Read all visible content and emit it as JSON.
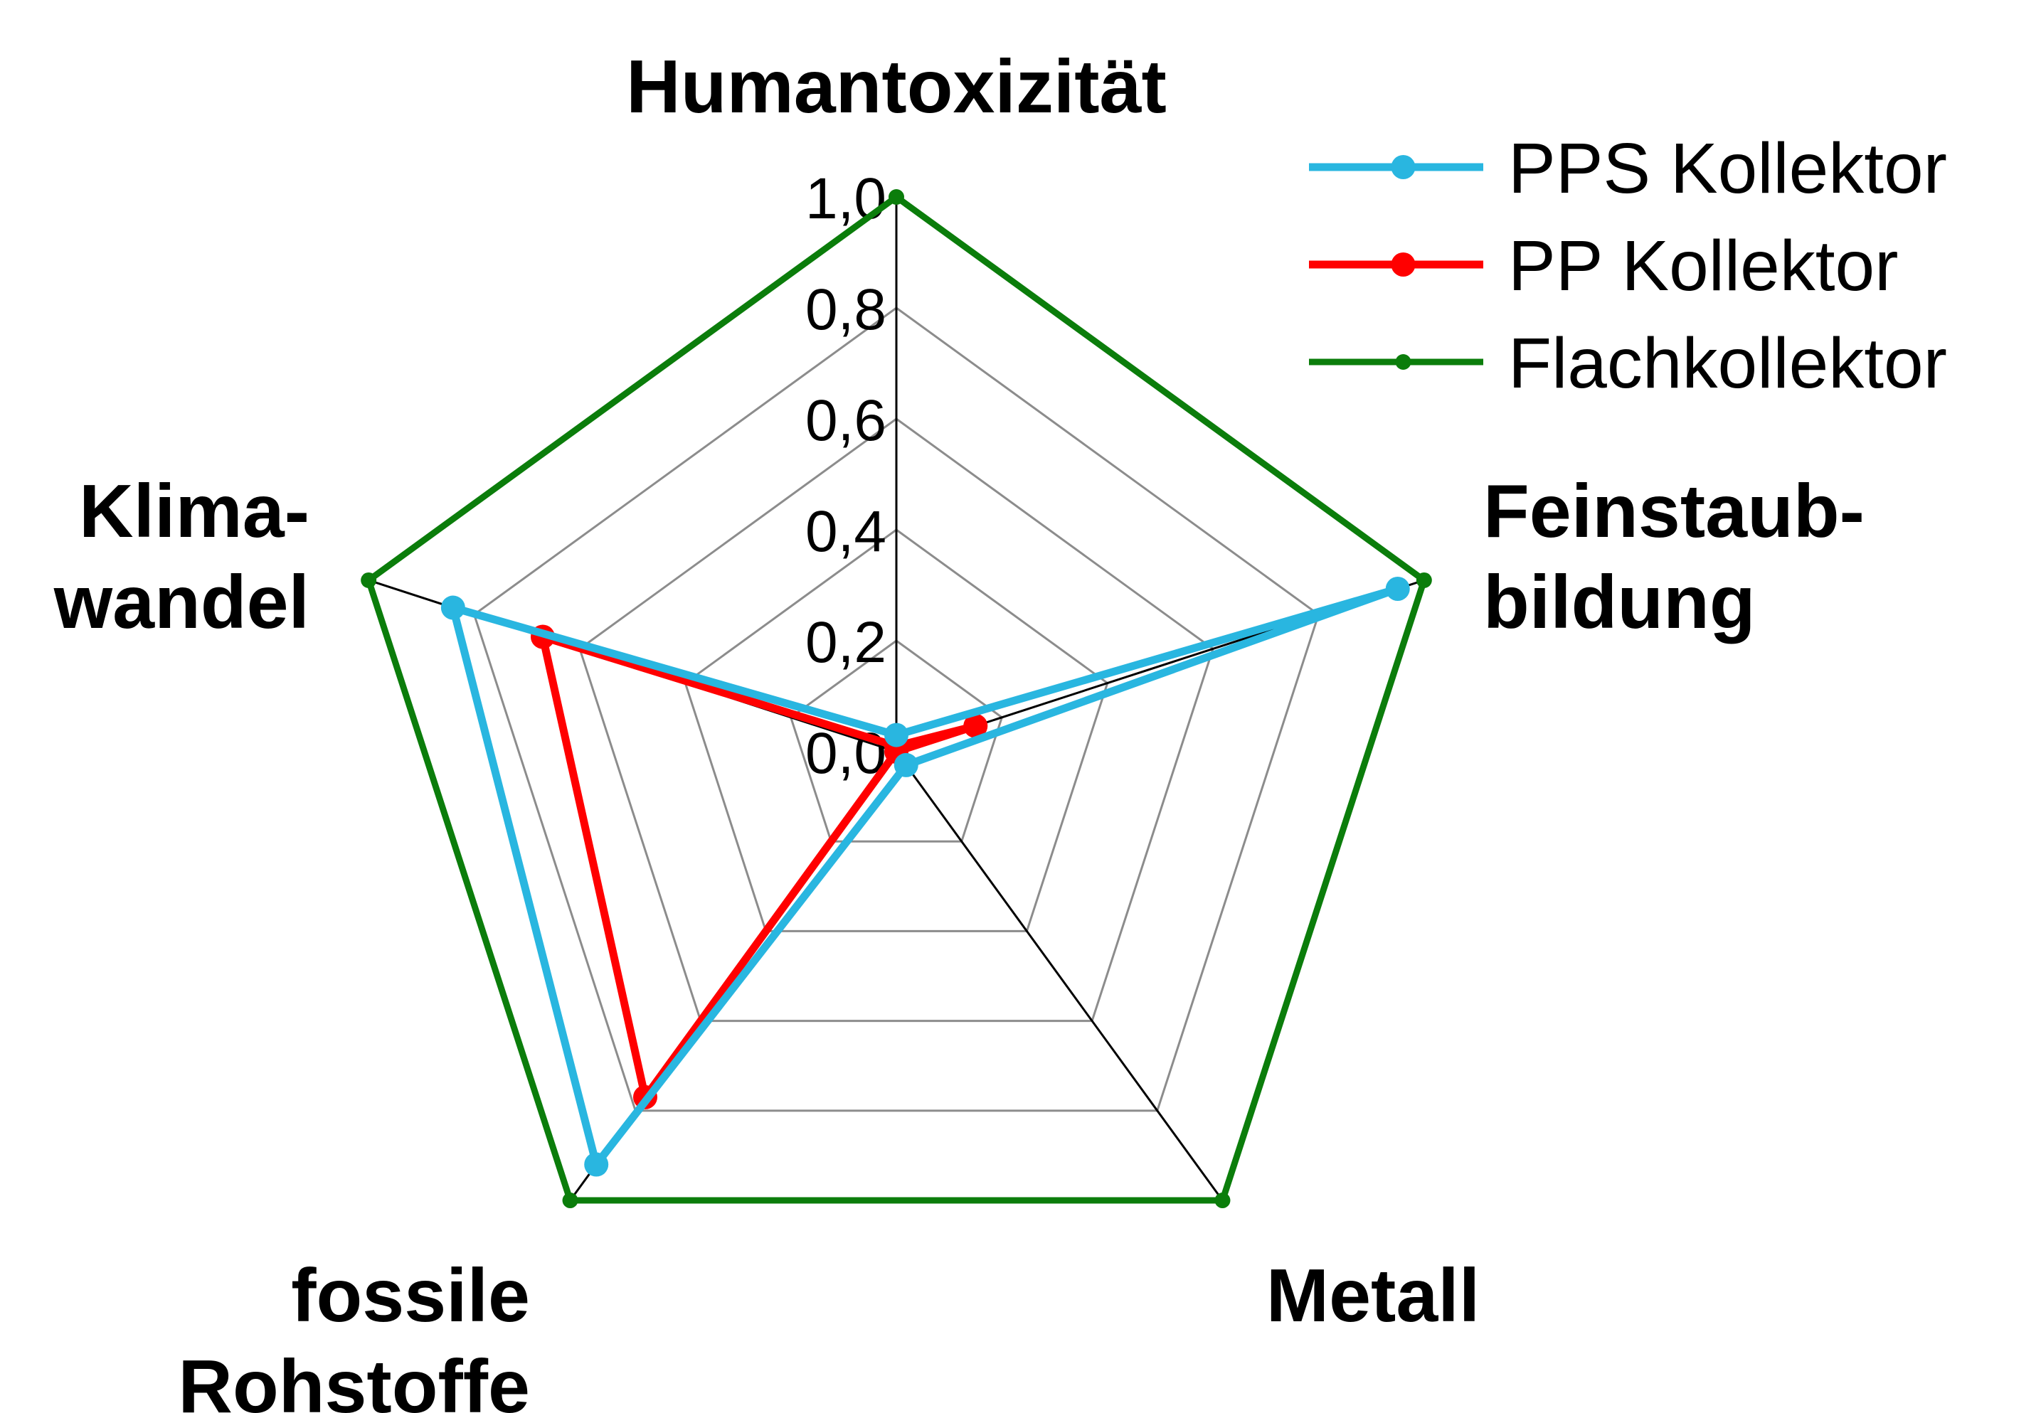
{
  "chart_data": {
    "type": "radar",
    "axes": [
      {
        "lines": [
          "Humantoxizität"
        ]
      },
      {
        "lines": [
          "Feinstaub-",
          "bildung"
        ]
      },
      {
        "lines": [
          "Metall"
        ]
      },
      {
        "lines": [
          "fossile",
          "Rohstoffe"
        ]
      },
      {
        "lines": [
          "Klima-",
          "wandel"
        ]
      }
    ],
    "ticks": [
      "0,0",
      "0,2",
      "0,4",
      "0,6",
      "0,8",
      "1,0"
    ],
    "tick_values": [
      0,
      0.2,
      0.4,
      0.6,
      0.8,
      1.0
    ],
    "rlim": [
      0,
      1
    ],
    "grid": true,
    "legend_position": "top-right",
    "series": [
      {
        "name": "PPS Kollektor",
        "color": "#29b6e0",
        "values": [
          0.03,
          0.95,
          0.03,
          0.92,
          0.84
        ]
      },
      {
        "name": "PP Kollektor",
        "color": "#ff0000",
        "values": [
          0.01,
          0.15,
          0.0,
          0.77,
          0.67
        ]
      },
      {
        "name": "Flachkollektor",
        "color": "#0b7d0b",
        "values": [
          1.0,
          1.0,
          1.0,
          1.0,
          1.0
        ]
      }
    ]
  }
}
